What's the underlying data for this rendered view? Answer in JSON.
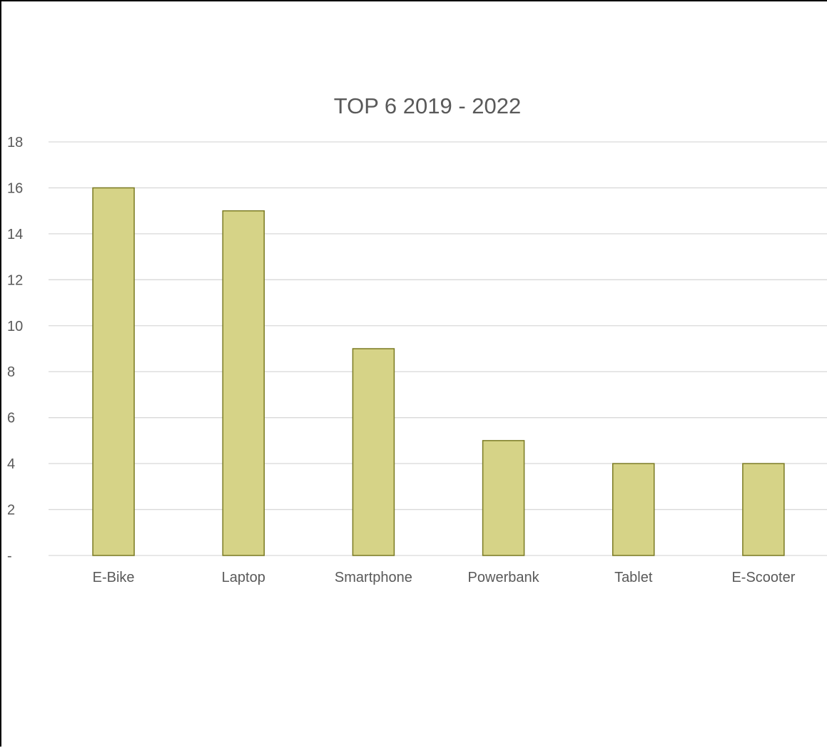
{
  "chart_data": {
    "type": "bar",
    "title": "TOP 6 2019 - 2022",
    "xlabel": "",
    "ylabel": "",
    "categories": [
      "E-Bike",
      "Laptop",
      "Smartphone",
      "Powerbank",
      "Tablet",
      "E-Scooter"
    ],
    "values": [
      16,
      15,
      9,
      5,
      4,
      4
    ],
    "ylim": [
      0,
      18
    ],
    "ytick_labels": [
      "-",
      "2",
      "4",
      "6",
      "8",
      "10",
      "12",
      "14",
      "16",
      "18"
    ],
    "grid": true,
    "legend": "none",
    "colors": {
      "bar_fill": "#d6d387",
      "bar_stroke": "#7a7a22",
      "gridline": "#d9d9d9",
      "text": "#595959"
    }
  }
}
